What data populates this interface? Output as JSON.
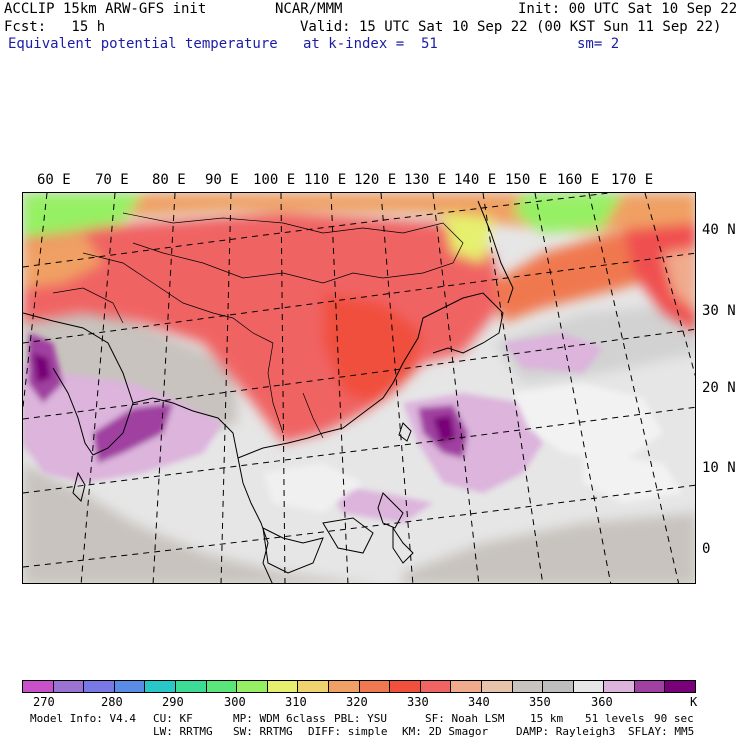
{
  "header": {
    "line1_left": "ACCLIP 15km ARW-GFS init",
    "line1_center": "NCAR/MMM",
    "line1_right": "Init: 00 UTC Sat 10 Sep 22",
    "line2_left": "Fcst:   15 h",
    "line2_right": "Valid: 15 UTC Sat 10 Sep 22 (00 KST Sun 11 Sep 22)",
    "line3_field": "Equivalent potential temperature",
    "line3_level": "at k-index =  51",
    "line3_smooth": "sm= 2"
  },
  "map": {
    "lon_labels": [
      "60 E",
      "70 E",
      "80 E",
      "90 E",
      "100 E",
      "110 E",
      "120 E",
      "130 E",
      "140 E",
      "150 E",
      "160 E",
      "170 E"
    ],
    "lat_labels": [
      "40 N",
      "30 N",
      "20 N",
      "10 N",
      "0"
    ]
  },
  "colorbar": {
    "colors": [
      "#c850c8",
      "#9b73d2",
      "#7878e6",
      "#5a8ce6",
      "#28c8c8",
      "#3cdc96",
      "#5ae678",
      "#96f064",
      "#e6f06e",
      "#f0d26e",
      "#f0a064",
      "#f07850",
      "#f0503c",
      "#f06464",
      "#f0aa8c",
      "#e6c3aa",
      "#c8c3be",
      "#bebebe",
      "#e6e6e6",
      "#dcb4dc",
      "#a040a0",
      "#780078"
    ],
    "labels": [
      "270",
      "280",
      "290",
      "300",
      "310",
      "320",
      "330",
      "340",
      "350",
      "360",
      "K"
    ]
  },
  "footer": {
    "line1": [
      "Model Info: V4.4",
      "CU: KF",
      "MP: WDM 6class",
      "PBL: YSU",
      "SF: Noah LSM",
      "15 km",
      "51 levels",
      "90 sec"
    ],
    "line2": [
      "LW: RRTMG",
      "SW: RRTMG",
      "DIFF: simple",
      "KM: 2D Smagor",
      "DAMP: Rayleigh3",
      "SFLAY: MM5"
    ]
  }
}
